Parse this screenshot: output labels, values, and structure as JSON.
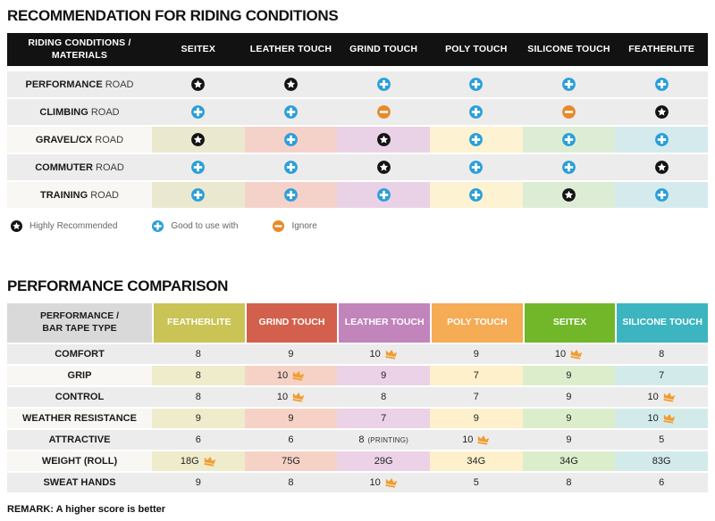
{
  "chart_data": [
    {
      "type": "table",
      "title": "RECOMMENDATION FOR RIDING CONDITIONS",
      "corner_header_lines": [
        "RIDING CONDITIONS /",
        "MATERIALS"
      ],
      "columns": [
        "SEITEX",
        "LEATHER TOUCH",
        "GRIND TOUCH",
        "POLY TOUCH",
        "SILICONE TOUCH",
        "FEATHERLITE"
      ],
      "rows": [
        {
          "label_bold": "PERFORMANCE",
          "label_rest": "ROAD",
          "tinted": false,
          "values": [
            "star",
            "star",
            "plus",
            "plus",
            "plus",
            "plus"
          ]
        },
        {
          "label_bold": "CLIMBING",
          "label_rest": "ROAD",
          "tinted": false,
          "values": [
            "plus",
            "plus",
            "minus",
            "plus",
            "minus",
            "star"
          ]
        },
        {
          "label_bold": "GRAVEL/CX",
          "label_rest": "ROAD",
          "tinted": true,
          "values": [
            "star",
            "plus",
            "star",
            "plus",
            "plus",
            "plus"
          ]
        },
        {
          "label_bold": "COMMUTER",
          "label_rest": "ROAD",
          "tinted": false,
          "values": [
            "plus",
            "plus",
            "star",
            "plus",
            "plus",
            "star"
          ]
        },
        {
          "label_bold": "TRAINING",
          "label_rest": "ROAD",
          "tinted": true,
          "values": [
            "plus",
            "plus",
            "plus",
            "plus",
            "star",
            "plus"
          ]
        }
      ],
      "legend": [
        {
          "icon": "star",
          "label": "Highly Recommended"
        },
        {
          "icon": "plus",
          "label": "Good to use with"
        },
        {
          "icon": "minus",
          "label": "Ignore"
        }
      ]
    },
    {
      "type": "table",
      "title": "PERFORMANCE COMPARISON",
      "corner_header_lines": [
        "PERFORMANCE /",
        "BAR TAPE TYPE"
      ],
      "columns": [
        {
          "name": "FEATHERLITE",
          "color": "#c9c455",
          "light": "#eeeccb"
        },
        {
          "name": "GRIND TOUCH",
          "color": "#d2604d",
          "light": "#f6d2c6"
        },
        {
          "name": "LEATHER TOUCH",
          "color": "#c184bb",
          "light": "#ecd2e7"
        },
        {
          "name": "POLY TOUCH",
          "color": "#f6ab55",
          "light": "#fdf0cb"
        },
        {
          "name": "SEITEX",
          "color": "#72b62a",
          "light": "#dcedcc"
        },
        {
          "name": "SILICONE TOUCH",
          "color": "#3cb5c0",
          "light": "#d2ebea"
        }
      ],
      "rows": [
        {
          "label": "COMFORT",
          "tinted": false,
          "cells": [
            {
              "value": "8"
            },
            {
              "value": "9"
            },
            {
              "value": "10",
              "best": true
            },
            {
              "value": "9"
            },
            {
              "value": "10",
              "best": true
            },
            {
              "value": "8"
            }
          ]
        },
        {
          "label": "GRIP",
          "tinted": true,
          "cells": [
            {
              "value": "8"
            },
            {
              "value": "10",
              "best": true
            },
            {
              "value": "9"
            },
            {
              "value": "7"
            },
            {
              "value": "9"
            },
            {
              "value": "7"
            }
          ]
        },
        {
          "label": "CONTROL",
          "tinted": false,
          "cells": [
            {
              "value": "8"
            },
            {
              "value": "10",
              "best": true
            },
            {
              "value": "8"
            },
            {
              "value": "7"
            },
            {
              "value": "9"
            },
            {
              "value": "10",
              "best": true
            }
          ]
        },
        {
          "label": "WEATHER RESISTANCE",
          "tinted": true,
          "cells": [
            {
              "value": "9"
            },
            {
              "value": "9"
            },
            {
              "value": "7"
            },
            {
              "value": "9"
            },
            {
              "value": "9"
            },
            {
              "value": "10",
              "best": true
            }
          ]
        },
        {
          "label": "ATTRACTIVE",
          "tinted": false,
          "cells": [
            {
              "value": "6"
            },
            {
              "value": "6"
            },
            {
              "value": "8",
              "note": "(PRINTING)"
            },
            {
              "value": "10",
              "best": true
            },
            {
              "value": "9"
            },
            {
              "value": "5"
            }
          ]
        },
        {
          "label": "WEIGHT (ROLL)",
          "tinted": true,
          "cells": [
            {
              "value": "18G",
              "best": true
            },
            {
              "value": "75G"
            },
            {
              "value": "29G"
            },
            {
              "value": "34G"
            },
            {
              "value": "34G"
            },
            {
              "value": "83G"
            }
          ]
        },
        {
          "label": "SWEAT HANDS",
          "tinted": false,
          "cells": [
            {
              "value": "9"
            },
            {
              "value": "8"
            },
            {
              "value": "10",
              "best": true
            },
            {
              "value": "5"
            },
            {
              "value": "8"
            },
            {
              "value": "6"
            }
          ]
        }
      ]
    }
  ],
  "remark": "REMARK: A higher score is better",
  "theme": {
    "header1_bg": "#121212",
    "row_gray": "#ececec",
    "tinted_label_bg": "#f8f7f4",
    "corner2_bg": "#d9d9d9",
    "table1_column_tints": [
      "#ebe8d0",
      "#f5d2c9",
      "#e9d2e5",
      "#fdf2d2",
      "#ddedd5",
      "#d5eaed"
    ],
    "icon_colors": {
      "star": "#141414",
      "plus": "#2a9fd8",
      "minus": "#e8892b",
      "crown": "#f39b2d"
    }
  }
}
